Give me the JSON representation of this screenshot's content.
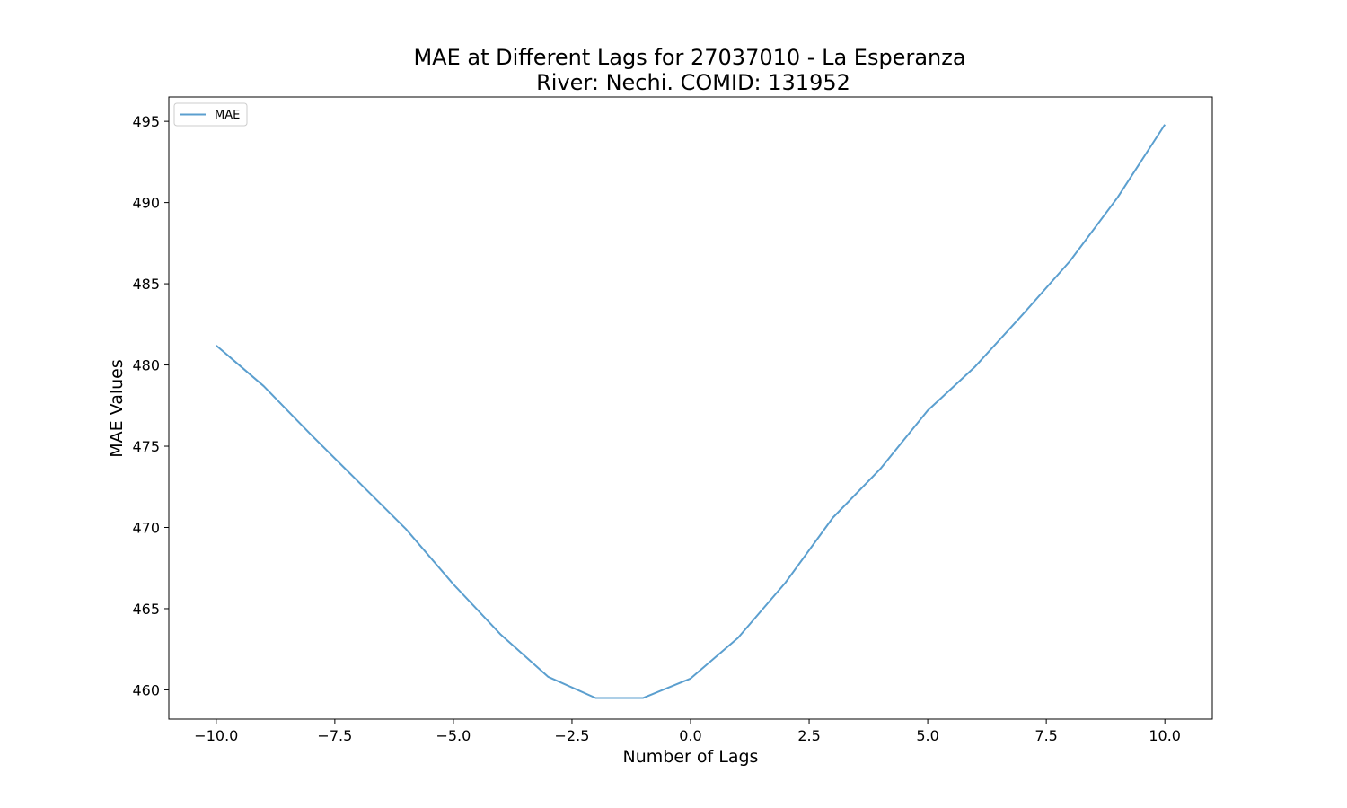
{
  "chart_data": {
    "type": "line",
    "title": "MAE at Different Lags for 27037010 - La Esperanza",
    "subtitle": "River: Nechi. COMID: 131952",
    "xlabel": "Number of Lags",
    "ylabel": "MAE Values",
    "xlim": [
      -11,
      11
    ],
    "ylim": [
      458.2,
      496.5
    ],
    "xticks": [
      -10.0,
      -7.5,
      -5.0,
      -2.5,
      0.0,
      2.5,
      5.0,
      7.5,
      10.0
    ],
    "xtick_labels": [
      "−10.0",
      "−7.5",
      "−5.0",
      "−2.5",
      "0.0",
      "2.5",
      "5.0",
      "7.5",
      "10.0"
    ],
    "yticks": [
      460,
      465,
      470,
      475,
      480,
      485,
      490,
      495
    ],
    "ytick_labels": [
      "460",
      "465",
      "470",
      "475",
      "480",
      "485",
      "490",
      "495"
    ],
    "grid": false,
    "legend_position": "top-left",
    "series": [
      {
        "name": "MAE",
        "color": "#5b9fcf",
        "x": [
          -10,
          -9,
          -8,
          -7,
          -6,
          -5,
          -4,
          -3,
          -2,
          -1,
          0,
          1,
          2,
          3,
          4,
          5,
          6,
          7,
          8,
          9,
          10
        ],
        "y": [
          481.2,
          478.7,
          475.7,
          472.8,
          469.9,
          466.5,
          463.4,
          460.8,
          459.5,
          459.5,
          460.7,
          463.2,
          466.6,
          470.6,
          473.6,
          477.2,
          479.9,
          483.1,
          486.4,
          490.3,
          494.8
        ]
      }
    ]
  }
}
